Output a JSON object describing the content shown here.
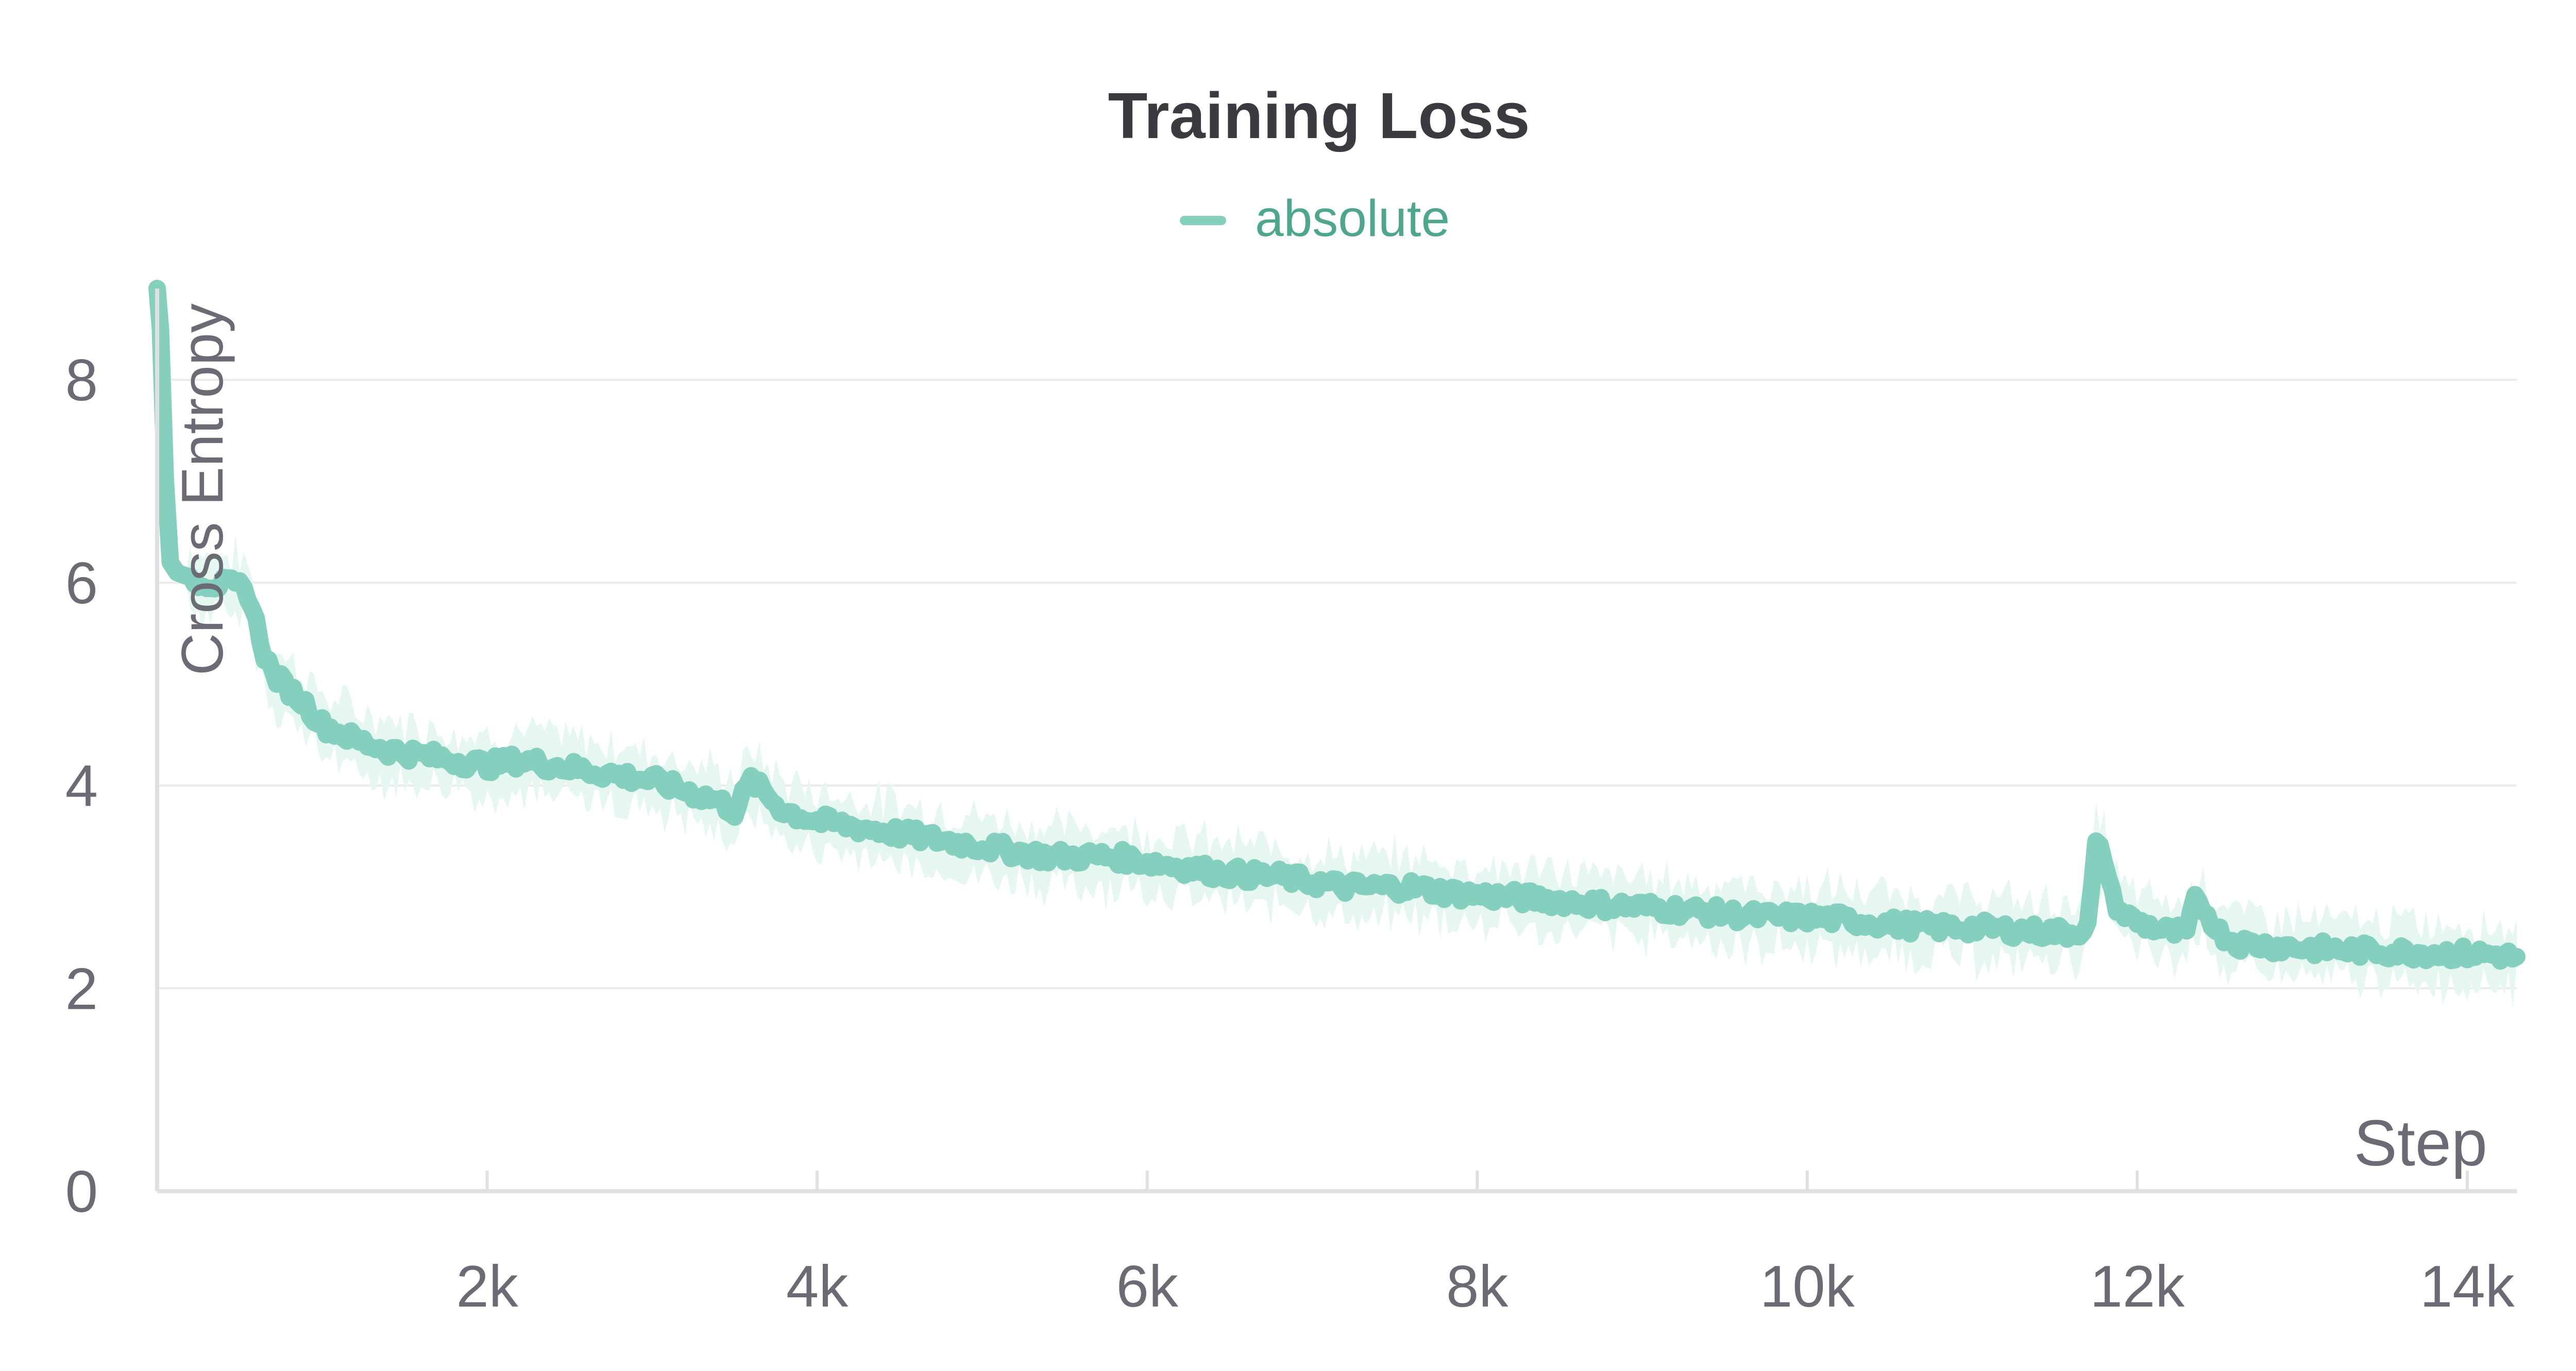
{
  "chart_data": {
    "type": "line",
    "title": "Training Loss",
    "xlabel": "Step",
    "ylabel": "Cross Entropy",
    "legend": {
      "position": "top-center",
      "entries": [
        "absolute"
      ]
    },
    "grid": true,
    "xlim": [
      0,
      14300
    ],
    "ylim": [
      0,
      8.9
    ],
    "xticks": [
      2000,
      4000,
      6000,
      8000,
      10000,
      12000,
      14000
    ],
    "xtick_labels": [
      "2k",
      "4k",
      "6k",
      "8k",
      "10k",
      "12k",
      "14k"
    ],
    "yticks": [
      0,
      2,
      4,
      6,
      8
    ],
    "ytick_labels": [
      "0",
      "2",
      "4",
      "6",
      "8"
    ],
    "colors": {
      "series": "#84cfbd",
      "band": "#e6f6f1",
      "axis": "#e0e0e2",
      "grid": "#ebebed",
      "text": "#6b6b76",
      "title": "#3a3a40",
      "legend_text": "#4fa68f"
    },
    "series": [
      {
        "name": "absolute",
        "x": [
          0,
          20,
          50,
          80,
          120,
          200,
          300,
          400,
          500,
          550,
          600,
          650,
          700,
          800,
          900,
          1000,
          1200,
          1400,
          1600,
          1800,
          2000,
          2200,
          2400,
          2600,
          2800,
          3000,
          3200,
          3400,
          3500,
          3600,
          3700,
          3800,
          4000,
          4200,
          4400,
          4600,
          4800,
          5000,
          5200,
          5400,
          5600,
          5800,
          6000,
          6200,
          6400,
          6600,
          6800,
          7000,
          7200,
          7400,
          7600,
          7800,
          8000,
          8200,
          8400,
          8600,
          8800,
          9000,
          9200,
          9400,
          9600,
          9800,
          10000,
          10200,
          10400,
          10600,
          10800,
          11000,
          11200,
          11400,
          11600,
          11700,
          11750,
          11800,
          11850,
          11900,
          12000,
          12200,
          12300,
          12350,
          12400,
          12500,
          12600,
          12800,
          13000,
          13200,
          13400,
          13600,
          13800,
          14000,
          14200,
          14300
        ],
        "y": [
          8.9,
          8.5,
          7.0,
          6.2,
          6.1,
          6.05,
          6.0,
          5.98,
          5.95,
          5.9,
          5.6,
          5.3,
          5.1,
          4.95,
          4.8,
          4.6,
          4.45,
          4.35,
          4.3,
          4.25,
          4.2,
          4.25,
          4.2,
          4.15,
          4.1,
          4.05,
          3.95,
          3.85,
          3.75,
          4.05,
          3.9,
          3.75,
          3.65,
          3.6,
          3.55,
          3.5,
          3.45,
          3.4,
          3.35,
          3.3,
          3.3,
          3.3,
          3.25,
          3.2,
          3.15,
          3.12,
          3.1,
          3.05,
          3.0,
          3.0,
          3.0,
          2.95,
          2.92,
          2.9,
          2.88,
          2.85,
          2.82,
          2.8,
          2.78,
          2.75,
          2.72,
          2.7,
          2.7,
          2.68,
          2.65,
          2.62,
          2.6,
          2.6,
          2.58,
          2.56,
          2.55,
          2.6,
          3.4,
          3.3,
          2.9,
          2.75,
          2.65,
          2.55,
          2.55,
          2.85,
          2.8,
          2.55,
          2.45,
          2.42,
          2.4,
          2.38,
          2.37,
          2.36,
          2.35,
          2.34,
          2.33,
          2.3
        ]
      }
    ]
  }
}
